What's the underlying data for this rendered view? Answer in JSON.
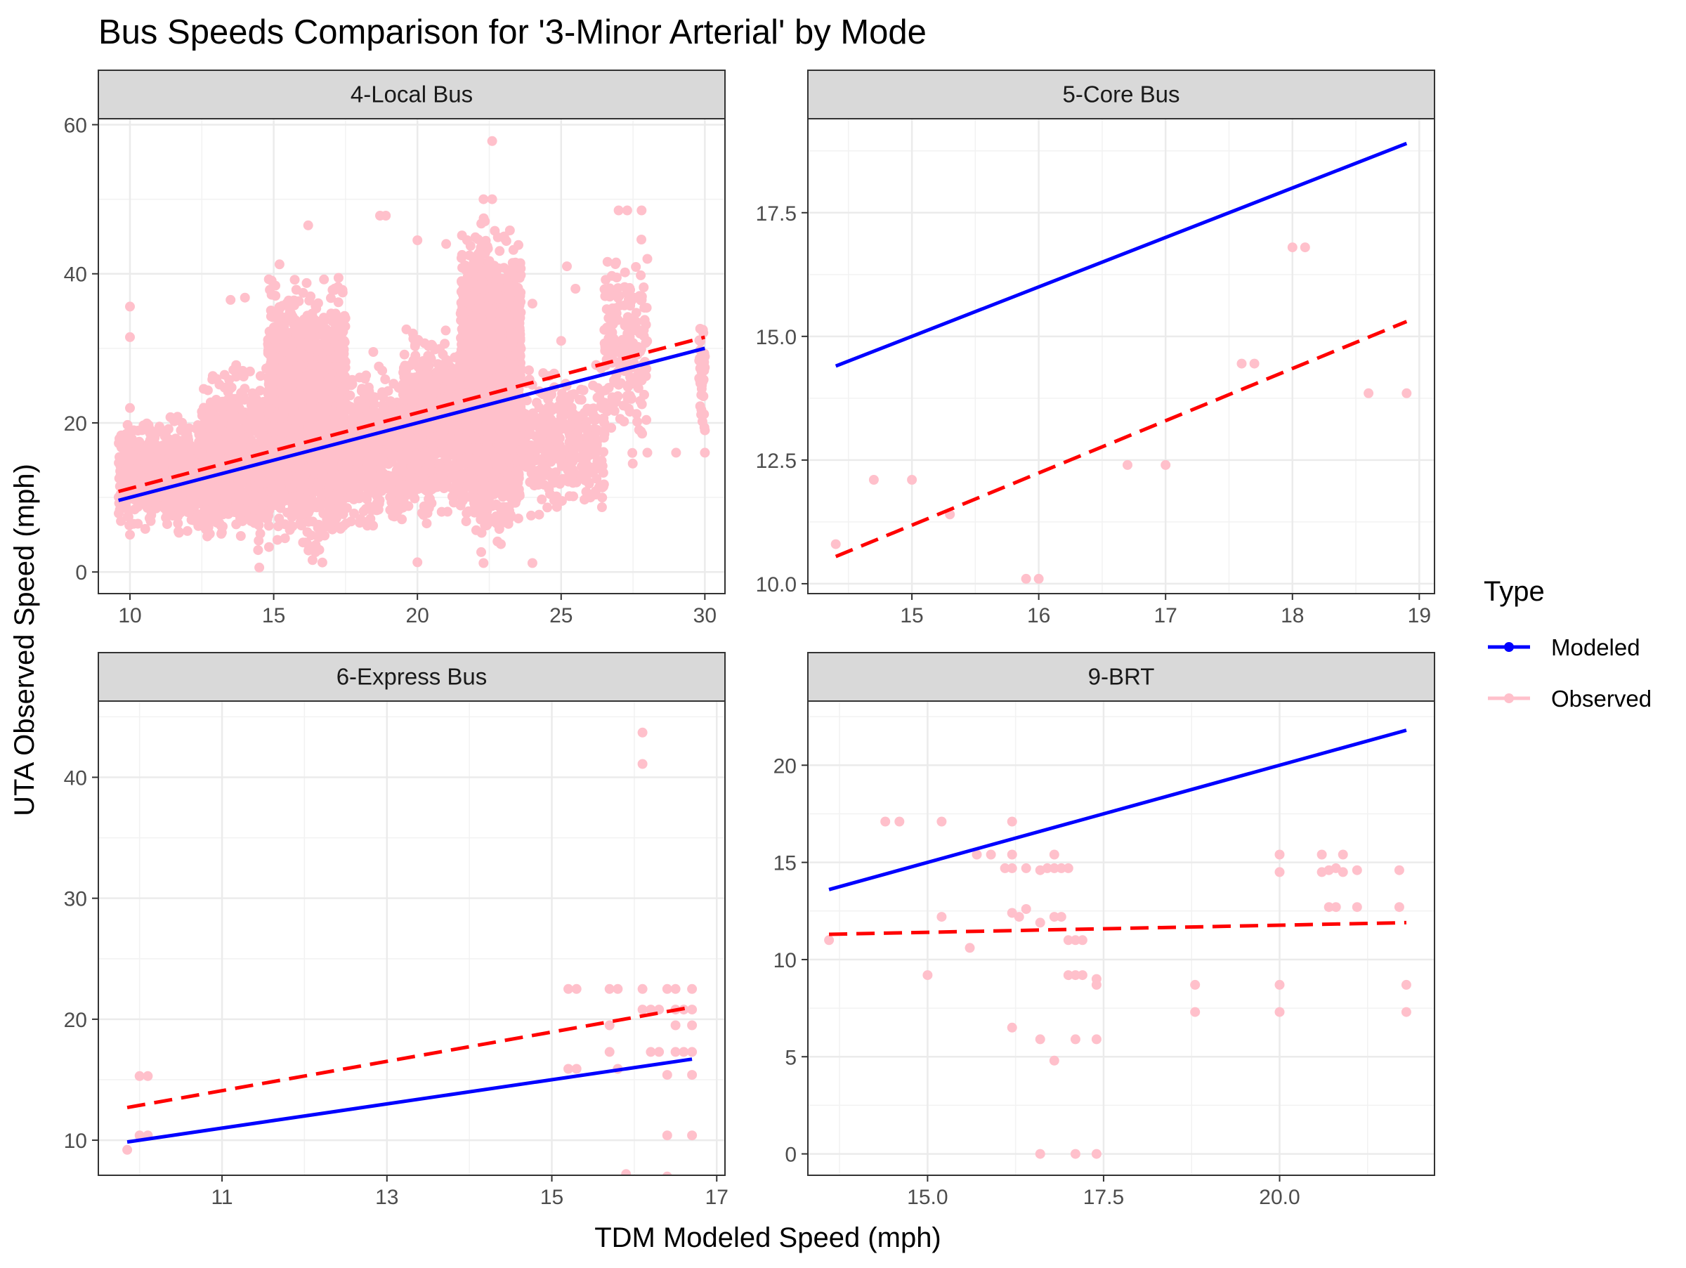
{
  "chart_data": {
    "type": "scatter",
    "title": "Bus Speeds Comparison for '3-Minor Arterial' by Mode",
    "xlabel": "TDM Modeled Speed (mph)",
    "ylabel": "UTA Observed Speed (mph)",
    "grid": true,
    "legend": {
      "title": "Type",
      "position": "right",
      "entries": [
        {
          "name": "Modeled",
          "color": "#0000FF",
          "style": "solid line with point"
        },
        {
          "name": "Observed",
          "color": "#FFC0CB",
          "style": "point"
        }
      ]
    },
    "fit_line": {
      "name": "linear fit of Observed",
      "color": "#FF0000",
      "style": "dashed"
    },
    "panels": [
      {
        "strip": "4-Local Bus",
        "xlim": [
          8.9,
          30.7
        ],
        "ylim": [
          -2.9,
          60.8
        ],
        "xticks": [
          "10",
          "15",
          "20",
          "25",
          "30"
        ],
        "xtick_values": [
          10,
          15,
          20,
          25,
          30
        ],
        "yticks": [
          "0",
          "20",
          "40",
          "60"
        ],
        "ytick_values": [
          0,
          20,
          40,
          60
        ],
        "modeled_line": [
          [
            9.6,
            9.6
          ],
          [
            30.0,
            30.0
          ]
        ],
        "fit_line": [
          [
            9.6,
            10.8
          ],
          [
            30.0,
            31.5
          ]
        ],
        "observed_clusters": [
          {
            "x": [
              9.6,
              13.5
            ],
            "y": [
              4,
              22
            ],
            "n": 900
          },
          {
            "x": [
              12.5,
              14.8
            ],
            "y": [
              1,
              30
            ],
            "n": 700
          },
          {
            "x": [
              14.8,
              17.5
            ],
            "y": [
              0,
              42
            ],
            "n": 2200
          },
          {
            "x": [
              17.5,
              19.5
            ],
            "y": [
              3,
              30
            ],
            "n": 450
          },
          {
            "x": [
              19.5,
              21.5
            ],
            "y": [
              5,
              34
            ],
            "n": 700
          },
          {
            "x": [
              21.5,
              23.6
            ],
            "y": [
              1,
              50
            ],
            "n": 2200
          },
          {
            "x": [
              23.6,
              26.5
            ],
            "y": [
              5,
              30
            ],
            "n": 350
          },
          {
            "x": [
              26.5,
              28.0
            ],
            "y": [
              12,
              48
            ],
            "n": 180
          },
          {
            "x": [
              29.8,
              30.0
            ],
            "y": [
              15,
              38
            ],
            "n": 40
          }
        ],
        "observed_points": [
          [
            22.6,
            57.8
          ],
          [
            10.0,
            35.6
          ],
          [
            10.0,
            31.5
          ],
          [
            18.7,
            47.8
          ],
          [
            18.9,
            47.8
          ],
          [
            16.2,
            46.5
          ],
          [
            22.3,
            50.0
          ],
          [
            22.6,
            50.0
          ],
          [
            10.0,
            22.0
          ],
          [
            10.0,
            19.0
          ],
          [
            10.0,
            5.0
          ],
          [
            14.5,
            0.6
          ],
          [
            20.0,
            1.3
          ],
          [
            22.3,
            1.2
          ],
          [
            24.0,
            1.2
          ],
          [
            27.0,
            48.5
          ],
          [
            27.3,
            48.5
          ],
          [
            27.8,
            48.5
          ],
          [
            28.0,
            42.0
          ],
          [
            26.5,
            20.0
          ],
          [
            28.0,
            16.0
          ],
          [
            30.0,
            28.9
          ],
          [
            30.0,
            19.0
          ],
          [
            30.0,
            16.0
          ],
          [
            29.0,
            16.0
          ],
          [
            25.0,
            15.2
          ],
          [
            23.2,
            37.0
          ],
          [
            24.0,
            36.0
          ],
          [
            25.0,
            31.0
          ],
          [
            12.0,
            5.5
          ],
          [
            13.5,
            36.5
          ],
          [
            14.0,
            36.8
          ],
          [
            24.5,
            13.0
          ],
          [
            25.5,
            38.0
          ],
          [
            25.2,
            41.0
          ],
          [
            21.0,
            44.0
          ],
          [
            20.0,
            44.5
          ]
        ]
      },
      {
        "strip": "5-Core Bus",
        "xlim": [
          14.18,
          19.12
        ],
        "ylim": [
          9.8,
          19.4
        ],
        "xticks": [
          "15",
          "16",
          "17",
          "18",
          "19"
        ],
        "xtick_values": [
          15,
          16,
          17,
          18,
          19
        ],
        "yticks": [
          "10.0",
          "12.5",
          "15.0",
          "17.5"
        ],
        "ytick_values": [
          10.0,
          12.5,
          15.0,
          17.5
        ],
        "modeled_line": [
          [
            14.4,
            14.4
          ],
          [
            18.9,
            18.9
          ]
        ],
        "fit_line": [
          [
            14.4,
            10.55
          ],
          [
            18.9,
            15.3
          ]
        ],
        "observed_points": [
          [
            14.4,
            10.8
          ],
          [
            14.7,
            12.1
          ],
          [
            15.0,
            12.1
          ],
          [
            15.3,
            11.4
          ],
          [
            15.9,
            10.1
          ],
          [
            16.0,
            10.1
          ],
          [
            16.7,
            12.4
          ],
          [
            17.0,
            12.4
          ],
          [
            17.6,
            14.45
          ],
          [
            17.7,
            14.45
          ],
          [
            18.0,
            16.8
          ],
          [
            18.1,
            16.8
          ],
          [
            18.6,
            13.85
          ],
          [
            18.9,
            13.85
          ]
        ]
      },
      {
        "strip": "6-Express Bus",
        "xlim": [
          9.5,
          17.1
        ],
        "ylim": [
          7.1,
          46.3
        ],
        "xticks": [
          "11",
          "13",
          "15",
          "17"
        ],
        "xtick_values": [
          11,
          13,
          15,
          17
        ],
        "yticks": [
          "10",
          "20",
          "30",
          "40"
        ],
        "ytick_values": [
          10,
          20,
          30,
          40
        ],
        "modeled_line": [
          [
            9.85,
            9.85
          ],
          [
            16.7,
            16.7
          ]
        ],
        "fit_line": [
          [
            9.85,
            12.7
          ],
          [
            16.7,
            21.0
          ]
        ],
        "observed_points": [
          [
            9.85,
            9.2
          ],
          [
            10.0,
            15.3
          ],
          [
            10.1,
            15.3
          ],
          [
            10.0,
            10.4
          ],
          [
            10.1,
            10.4
          ],
          [
            15.2,
            22.5
          ],
          [
            15.3,
            22.5
          ],
          [
            15.2,
            15.9
          ],
          [
            15.3,
            15.9
          ],
          [
            15.7,
            22.5
          ],
          [
            15.8,
            22.5
          ],
          [
            15.7,
            19.5
          ],
          [
            15.7,
            17.3
          ],
          [
            15.8,
            15.9
          ],
          [
            15.9,
            7.2
          ],
          [
            16.1,
            43.7
          ],
          [
            16.1,
            41.1
          ],
          [
            16.1,
            22.5
          ],
          [
            16.1,
            20.8
          ],
          [
            16.2,
            20.8
          ],
          [
            16.2,
            17.3
          ],
          [
            16.3,
            17.3
          ],
          [
            16.3,
            20.8
          ],
          [
            16.4,
            22.5
          ],
          [
            16.4,
            15.4
          ],
          [
            16.4,
            10.4
          ],
          [
            16.4,
            7.0
          ],
          [
            16.5,
            22.5
          ],
          [
            16.5,
            20.8
          ],
          [
            16.5,
            19.5
          ],
          [
            16.5,
            17.3
          ],
          [
            16.6,
            20.8
          ],
          [
            16.6,
            17.3
          ],
          [
            16.7,
            22.5
          ],
          [
            16.7,
            20.8
          ],
          [
            16.7,
            19.5
          ],
          [
            16.7,
            17.3
          ],
          [
            16.7,
            15.4
          ],
          [
            16.7,
            10.4
          ]
        ]
      },
      {
        "strip": "9-BRT",
        "xlim": [
          13.3,
          22.2
        ],
        "ylim": [
          -1.1,
          23.3
        ],
        "xticks": [
          "15.0",
          "17.5",
          "20.0"
        ],
        "xtick_values": [
          15.0,
          17.5,
          20.0
        ],
        "yticks": [
          "0",
          "5",
          "10",
          "15",
          "20"
        ],
        "ytick_values": [
          0,
          5,
          10,
          15,
          20
        ],
        "modeled_line": [
          [
            13.6,
            13.6
          ],
          [
            21.8,
            21.8
          ]
        ],
        "fit_line": [
          [
            13.6,
            11.3
          ],
          [
            21.8,
            11.9
          ]
        ],
        "observed_points": [
          [
            13.6,
            11.0
          ],
          [
            14.4,
            17.1
          ],
          [
            14.6,
            17.1
          ],
          [
            15.2,
            17.1
          ],
          [
            15.2,
            12.2
          ],
          [
            15.0,
            9.2
          ],
          [
            15.6,
            10.6
          ],
          [
            15.7,
            15.4
          ],
          [
            15.9,
            15.4
          ],
          [
            16.1,
            14.7
          ],
          [
            16.2,
            17.1
          ],
          [
            16.2,
            15.4
          ],
          [
            16.2,
            14.7
          ],
          [
            16.2,
            12.4
          ],
          [
            16.2,
            6.5
          ],
          [
            16.3,
            12.2
          ],
          [
            16.4,
            14.7
          ],
          [
            16.4,
            12.6
          ],
          [
            16.6,
            14.6
          ],
          [
            16.6,
            11.9
          ],
          [
            16.6,
            5.9
          ],
          [
            16.6,
            0.0
          ],
          [
            16.7,
            14.7
          ],
          [
            16.8,
            15.4
          ],
          [
            16.8,
            14.7
          ],
          [
            16.8,
            12.2
          ],
          [
            16.8,
            4.8
          ],
          [
            16.9,
            14.7
          ],
          [
            16.9,
            12.2
          ],
          [
            17.0,
            14.7
          ],
          [
            17.0,
            11.0
          ],
          [
            17.0,
            9.2
          ],
          [
            17.1,
            11.0
          ],
          [
            17.1,
            9.2
          ],
          [
            17.1,
            5.9
          ],
          [
            17.1,
            0.0
          ],
          [
            17.2,
            11.0
          ],
          [
            17.2,
            9.2
          ],
          [
            17.4,
            9.0
          ],
          [
            17.4,
            8.7
          ],
          [
            17.4,
            5.9
          ],
          [
            17.4,
            0.0
          ],
          [
            18.8,
            8.7
          ],
          [
            18.8,
            7.3
          ],
          [
            20.0,
            15.4
          ],
          [
            20.0,
            14.5
          ],
          [
            20.0,
            8.7
          ],
          [
            20.0,
            7.3
          ],
          [
            20.6,
            15.4
          ],
          [
            20.6,
            14.5
          ],
          [
            20.7,
            14.6
          ],
          [
            20.7,
            12.7
          ],
          [
            20.8,
            14.7
          ],
          [
            20.8,
            12.7
          ],
          [
            20.9,
            15.4
          ],
          [
            20.9,
            14.5
          ],
          [
            21.1,
            14.6
          ],
          [
            21.1,
            12.7
          ],
          [
            21.7,
            14.6
          ],
          [
            21.7,
            12.7
          ],
          [
            21.8,
            8.7
          ],
          [
            21.8,
            7.3
          ]
        ]
      }
    ]
  }
}
